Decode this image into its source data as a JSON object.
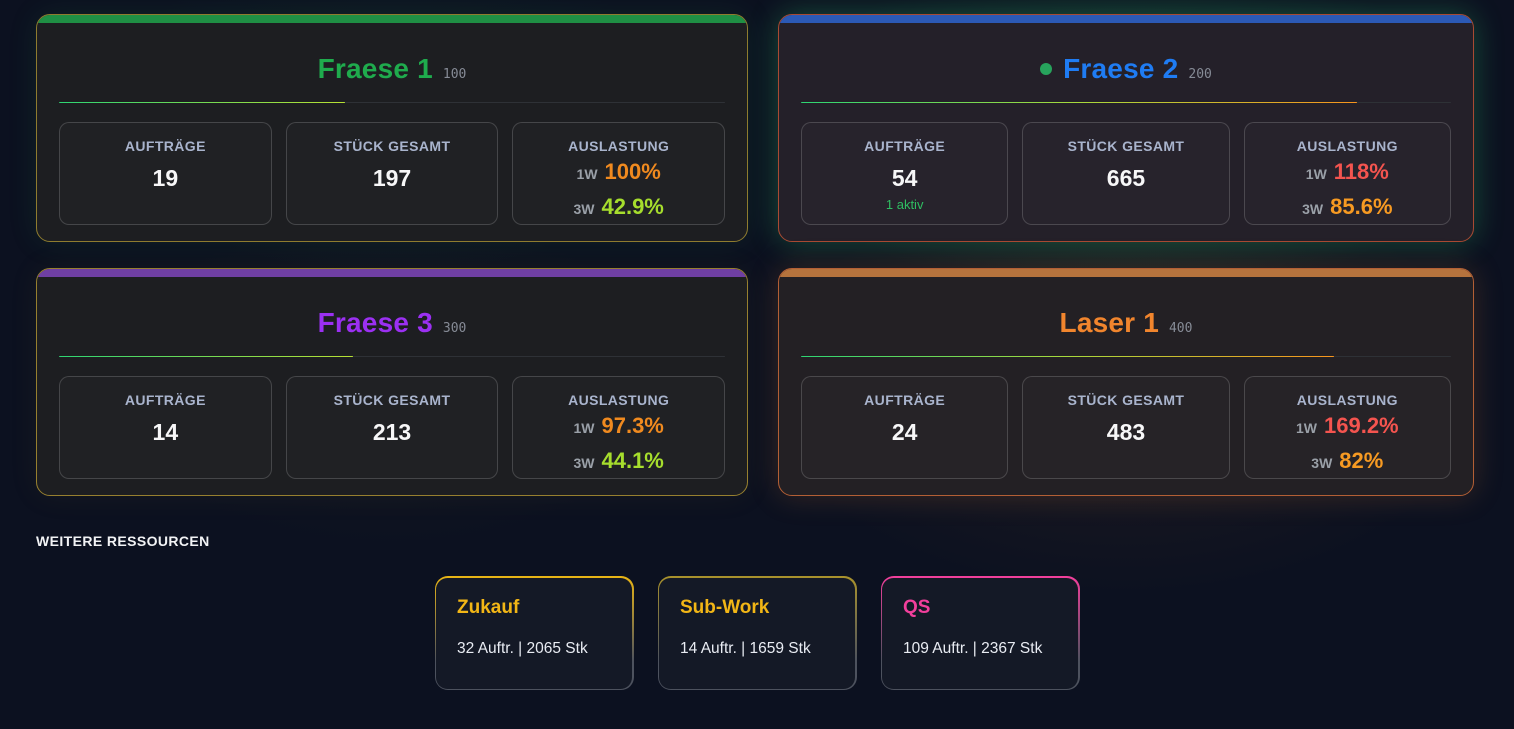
{
  "labels": {
    "orders": "AUFTRÄGE",
    "pieces": "STÜCK GESAMT",
    "utilization": "AUSLASTUNG",
    "week1": "1W",
    "week3": "3W"
  },
  "machines": [
    {
      "title": "Fraese 1",
      "code": "100",
      "active": false,
      "orders": "19",
      "orders_note": "",
      "pieces": "197",
      "util_1w": "100%",
      "util_3w": "42.9%",
      "progress_pct": 42.9,
      "colors": {
        "title": "#1fab4d",
        "border": "#8f7c2f",
        "strip": "#1f8f44",
        "background": "#1d1e21",
        "glow": "rgba(40,160,80,0.12)",
        "util_1w": "#f08a1f",
        "util_3w": "#a6dd2d",
        "bar": [
          "#2ed573",
          "#b7e034"
        ]
      }
    },
    {
      "title": "Fraese 2",
      "code": "200",
      "active": true,
      "orders": "54",
      "orders_note": "1 aktiv",
      "pieces": "665",
      "util_1w": "118%",
      "util_3w": "85.6%",
      "progress_pct": 85.6,
      "colors": {
        "title": "#1f7cf3",
        "border": "#a84a33",
        "strip": "#2b59b5",
        "background": "#242029",
        "glow": "rgba(46,204,113,0.33)",
        "util_1w": "#f4544f",
        "util_3w": "#f79a22",
        "bar": [
          "#2ed573",
          "#a8d93c",
          "#f7941d"
        ]
      }
    },
    {
      "title": "Fraese 3",
      "code": "300",
      "active": false,
      "orders": "14",
      "orders_note": "",
      "pieces": "213",
      "util_1w": "97.3%",
      "util_3w": "44.1%",
      "progress_pct": 44.1,
      "colors": {
        "title": "#9b30f2",
        "border": "#97802f",
        "strip": "#6f3fa3",
        "background": "#1d1e21",
        "glow": "rgba(150,130,40,0.08)",
        "util_1w": "#f08a1f",
        "util_3w": "#a6dd2d",
        "bar": [
          "#2ed573",
          "#b7e034"
        ]
      }
    },
    {
      "title": "Laser 1",
      "code": "400",
      "active": false,
      "orders": "24",
      "orders_note": "",
      "pieces": "483",
      "util_1w": "169.2%",
      "util_3w": "82%",
      "progress_pct": 82,
      "colors": {
        "title": "#f1852d",
        "border": "#b35f35",
        "strip": "#b5733d",
        "background": "#232024",
        "glow": "rgba(210,125,50,0.22)",
        "util_1w": "#f4544f",
        "util_3w": "#f79a22",
        "bar": [
          "#2ed573",
          "#a8d93c",
          "#f7941d"
        ]
      }
    }
  ],
  "resources": {
    "heading": "WEITERE RESSOURCEN",
    "items": [
      {
        "title": "Zukauf",
        "summary": "32 Auftr. | 2065 Stk",
        "color": "#e9b515"
      },
      {
        "title": "Sub-Work",
        "summary": "14 Auftr. | 1659 Stk",
        "color": "#a9922c"
      },
      {
        "title": "QS",
        "summary": "109 Auftr. | 2367 Stk",
        "color": "#f23f9c"
      }
    ]
  }
}
